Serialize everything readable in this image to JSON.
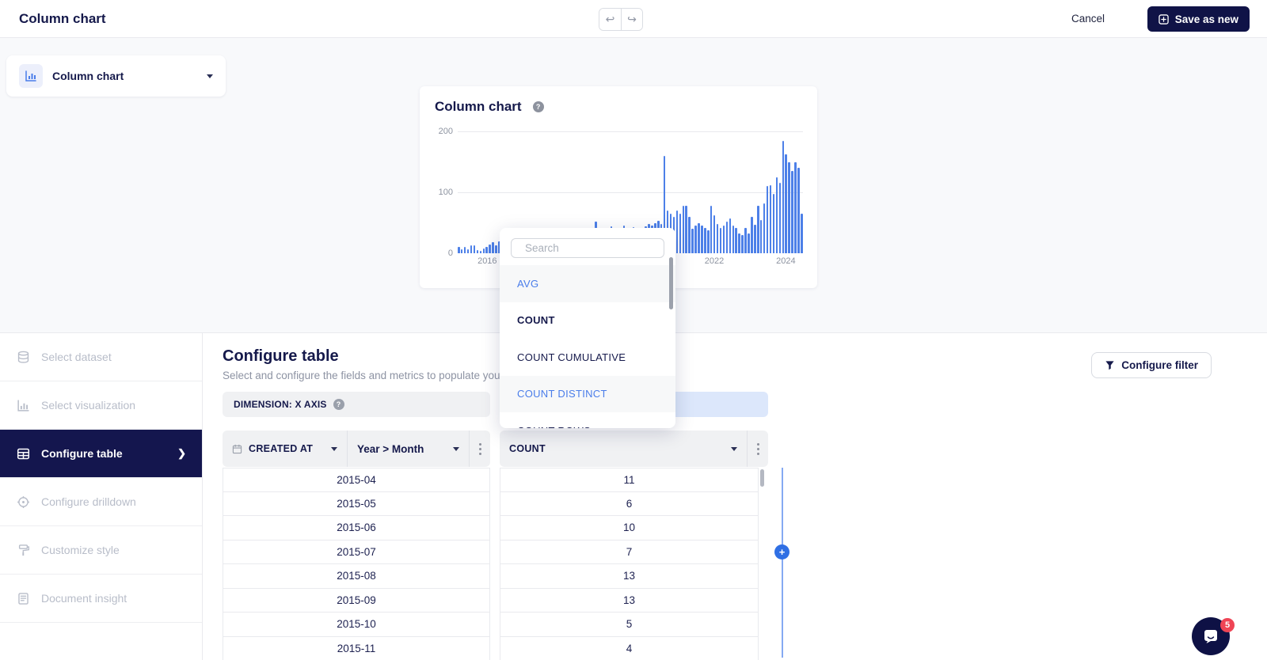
{
  "header": {
    "title": "Column chart",
    "cancel_label": "Cancel",
    "save_label": "Save as new"
  },
  "chart_type_selector": {
    "label": "Column chart"
  },
  "chart_panel": {
    "title": "Column chart"
  },
  "chart_data": {
    "type": "bar",
    "title": "Column chart",
    "x_start_month": "2015-04",
    "ylim": [
      0,
      200
    ],
    "y_ticks": [
      "200",
      "100",
      "0"
    ],
    "x_tick_labels": [
      {
        "label": "2016",
        "index": 9
      },
      {
        "label": "2022",
        "index": 82
      },
      {
        "label": "2024",
        "index": 105
      }
    ],
    "bar_color": "#4d80e8",
    "values": [
      11,
      6,
      10,
      7,
      13,
      13,
      5,
      4,
      8,
      10,
      14,
      18,
      13,
      20,
      24,
      22,
      17,
      14,
      11,
      15,
      19,
      14,
      17,
      20,
      22,
      25,
      27,
      24,
      20,
      18,
      21,
      24,
      27,
      28,
      26,
      30,
      33,
      29,
      36,
      40,
      34,
      30,
      33,
      37,
      52,
      34,
      38,
      36,
      40,
      44,
      39,
      37,
      41,
      46,
      42,
      38,
      43,
      38,
      36,
      40,
      44,
      48,
      46,
      50,
      53,
      48,
      160,
      70,
      65,
      60,
      70,
      65,
      78,
      78,
      60,
      40,
      45,
      50,
      46,
      42,
      38,
      78,
      62,
      48,
      42,
      46,
      52,
      57,
      45,
      42,
      33,
      30,
      42,
      33,
      60,
      47,
      78,
      55,
      82,
      110,
      112,
      97,
      125,
      115,
      185,
      163,
      150,
      135,
      150,
      140,
      65
    ]
  },
  "dropdown": {
    "search_placeholder": "Search",
    "items": [
      {
        "label": "AVG",
        "state": "hover"
      },
      {
        "label": "COUNT",
        "state": "bold"
      },
      {
        "label": "COUNT CUMULATIVE",
        "state": "normal"
      },
      {
        "label": "COUNT DISTINCT",
        "state": "selected"
      },
      {
        "label": "COUNT ROWS",
        "state": "normal"
      }
    ]
  },
  "sidebar": {
    "items": [
      {
        "label": "Select dataset",
        "icon": "database-icon",
        "active": false
      },
      {
        "label": "Select visualization",
        "icon": "chart-icon",
        "active": false
      },
      {
        "label": "Configure table",
        "icon": "table-icon",
        "active": true
      },
      {
        "label": "Configure drilldown",
        "icon": "target-icon",
        "active": false
      },
      {
        "label": "Customize style",
        "icon": "paint-icon",
        "active": false
      },
      {
        "label": "Document insight",
        "icon": "document-icon",
        "active": false
      }
    ]
  },
  "main": {
    "title": "Configure table",
    "subtitle": "Select and configure the fields and metrics to populate your insight",
    "filter_button": "Configure filter",
    "dimension_label": "DIMENSION: X AXIS",
    "columns": {
      "field": "CREATED AT",
      "granularity": "Year > Month",
      "metric": "COUNT"
    },
    "rows": [
      {
        "period": "2015-04",
        "count": "11"
      },
      {
        "period": "2015-05",
        "count": "6"
      },
      {
        "period": "2015-06",
        "count": "10"
      },
      {
        "period": "2015-07",
        "count": "7"
      },
      {
        "period": "2015-08",
        "count": "13"
      },
      {
        "period": "2015-09",
        "count": "13"
      },
      {
        "period": "2015-10",
        "count": "5"
      },
      {
        "period": "2015-11",
        "count": "4"
      }
    ]
  },
  "chat": {
    "badge": "5"
  },
  "colors": {
    "accent_blue": "#4a7dea",
    "navy": "#15194b",
    "save_button_bg": "#101347",
    "metric_bar_bg": "#dce7fb",
    "badge_red": "#ef4455",
    "bar_blue": "#4d80e8"
  }
}
